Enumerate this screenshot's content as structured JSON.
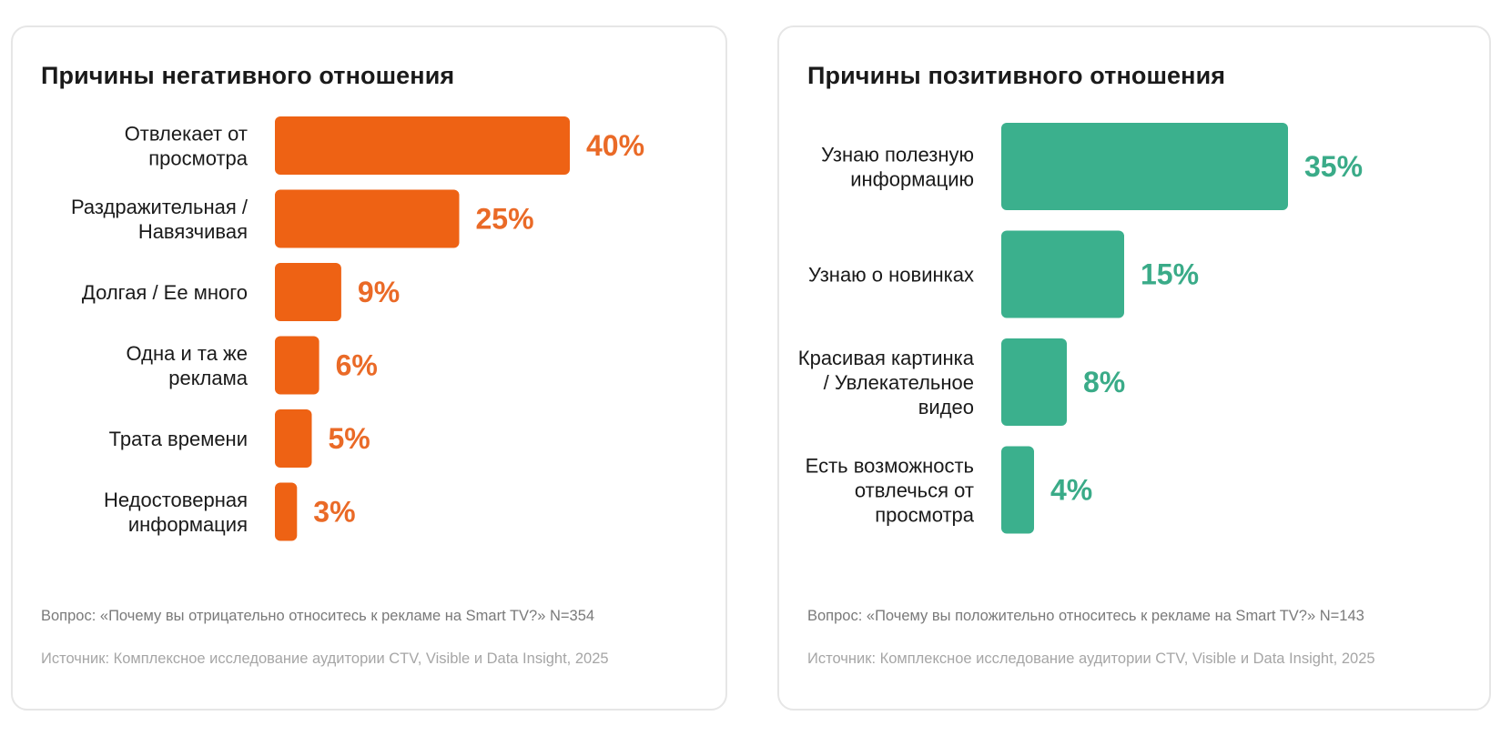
{
  "colors": {
    "negative": "#ee6214",
    "negative_label": "#ea6a27",
    "positive": "#3bb08d",
    "positive_label": "#3aab88"
  },
  "charts": [
    {
      "title": "Причины негативного отношения",
      "question": "Вопрос: «Почему вы отрицательно относитесь к рекламе на Smart TV?» N=354",
      "source": "Источник: Комплексное исследование аудитории CTV, Visible и Data Insight, 2025"
    },
    {
      "title": "Причины позитивного отношения",
      "question": "Вопрос: «Почему вы положительно относитесь к рекламе на Smart TV?» N=143",
      "source": "Источник: Комплексное исследование аудитории CTV, Visible и Data Insight, 2025"
    }
  ],
  "chart_data": [
    {
      "type": "bar",
      "orientation": "horizontal",
      "title": "Причины негативного отношения",
      "categories": [
        [
          "Отвлекает от",
          "просмотра"
        ],
        [
          "Раздражительная /",
          "Навязчивая"
        ],
        [
          "Долгая / Ее много"
        ],
        [
          "Одна и та же",
          "реклама"
        ],
        [
          "Трата времени"
        ],
        [
          "Недостоверная",
          "информация"
        ]
      ],
      "values": [
        40,
        25,
        9,
        6,
        5,
        3
      ],
      "value_labels": [
        "40%",
        "25%",
        "9%",
        "6%",
        "5%",
        "3%"
      ],
      "unit": "%",
      "grid": false,
      "legend": "none"
    },
    {
      "type": "bar",
      "orientation": "horizontal",
      "title": "Причины позитивного отношения",
      "categories": [
        [
          "Узнаю полезную",
          "информацию"
        ],
        [
          "Узнаю о новинках"
        ],
        [
          "Красивая картинка",
          "/ Увлекательное",
          "видео"
        ],
        [
          "Есть возможность",
          "отвлечься от",
          "просмотра"
        ]
      ],
      "values": [
        35,
        15,
        8,
        4
      ],
      "value_labels": [
        "35%",
        "15%",
        "8%",
        "4%"
      ],
      "unit": "%",
      "grid": false,
      "legend": "none"
    }
  ]
}
